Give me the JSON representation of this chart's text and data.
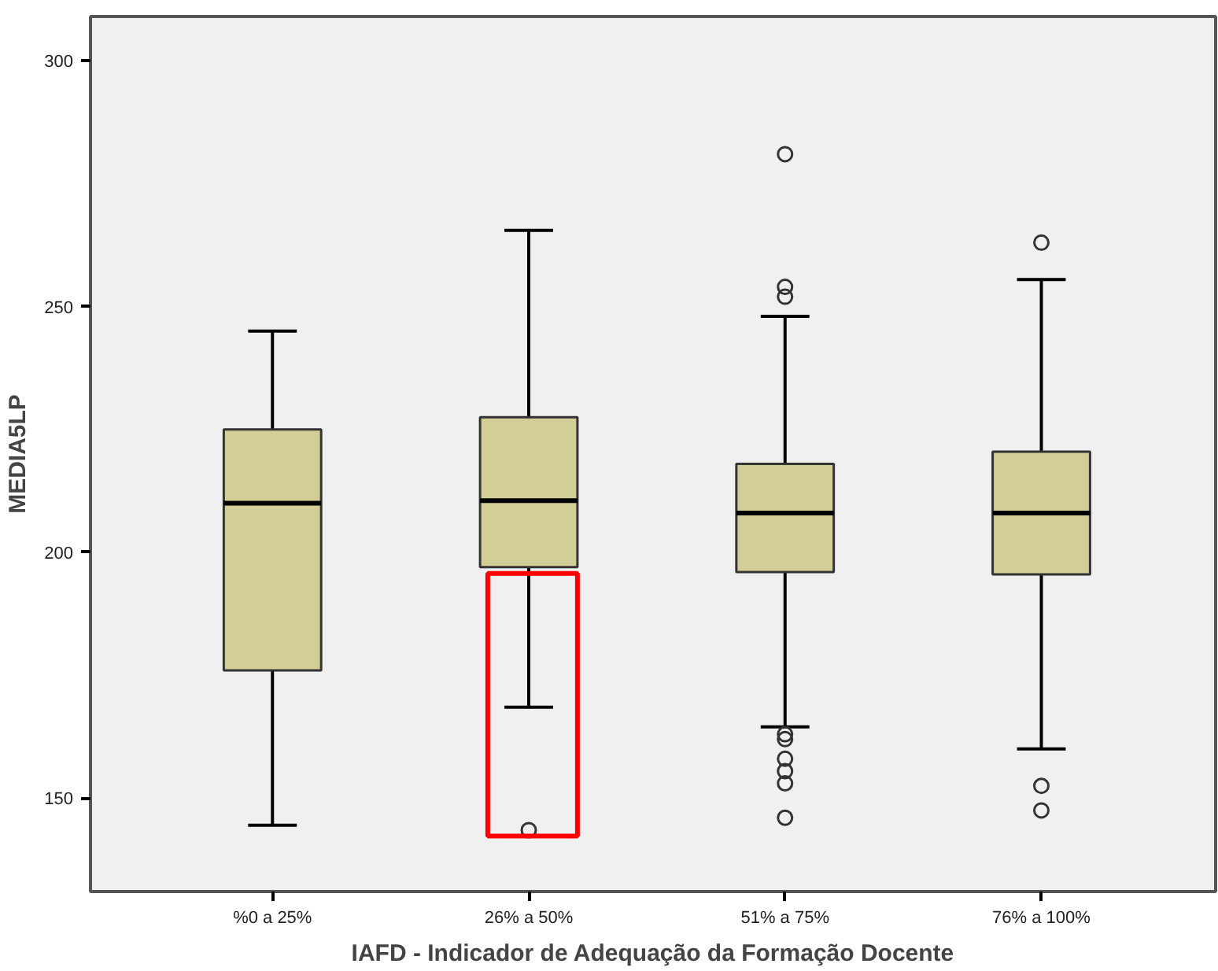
{
  "chart_data": {
    "type": "box",
    "xlabel": "IAFD - Indicador de Adequação da Formação Docente",
    "ylabel": "MEDIA5LP",
    "categories": [
      "%0 a 25%",
      "26% a 50%",
      "51% a 75%",
      "76% a 100%"
    ],
    "color": "#d3ce97",
    "boxes": [
      {
        "low": 144.5,
        "q1": 176,
        "median": 210,
        "q3": 225,
        "high": 245
      },
      {
        "low": 168.5,
        "q1": 197,
        "median": 210.5,
        "q3": 227.5,
        "high": 265.5,
        "outliers": [
          143.5
        ]
      },
      {
        "low": 164.5,
        "q1": 196,
        "median": 208,
        "q3": 218,
        "high": 248,
        "outliers": [
          281,
          254,
          252,
          163,
          162,
          158,
          155.5,
          153,
          146
        ]
      },
      {
        "low": 160,
        "q1": 195.5,
        "median": 208,
        "q3": 220.5,
        "high": 255.5,
        "outliers": [
          263,
          152.5,
          147.5
        ]
      }
    ],
    "ylim": [
      131,
      309
    ],
    "yticks": [
      150,
      200,
      250,
      300
    ],
    "grid": false,
    "marker": "circle"
  }
}
